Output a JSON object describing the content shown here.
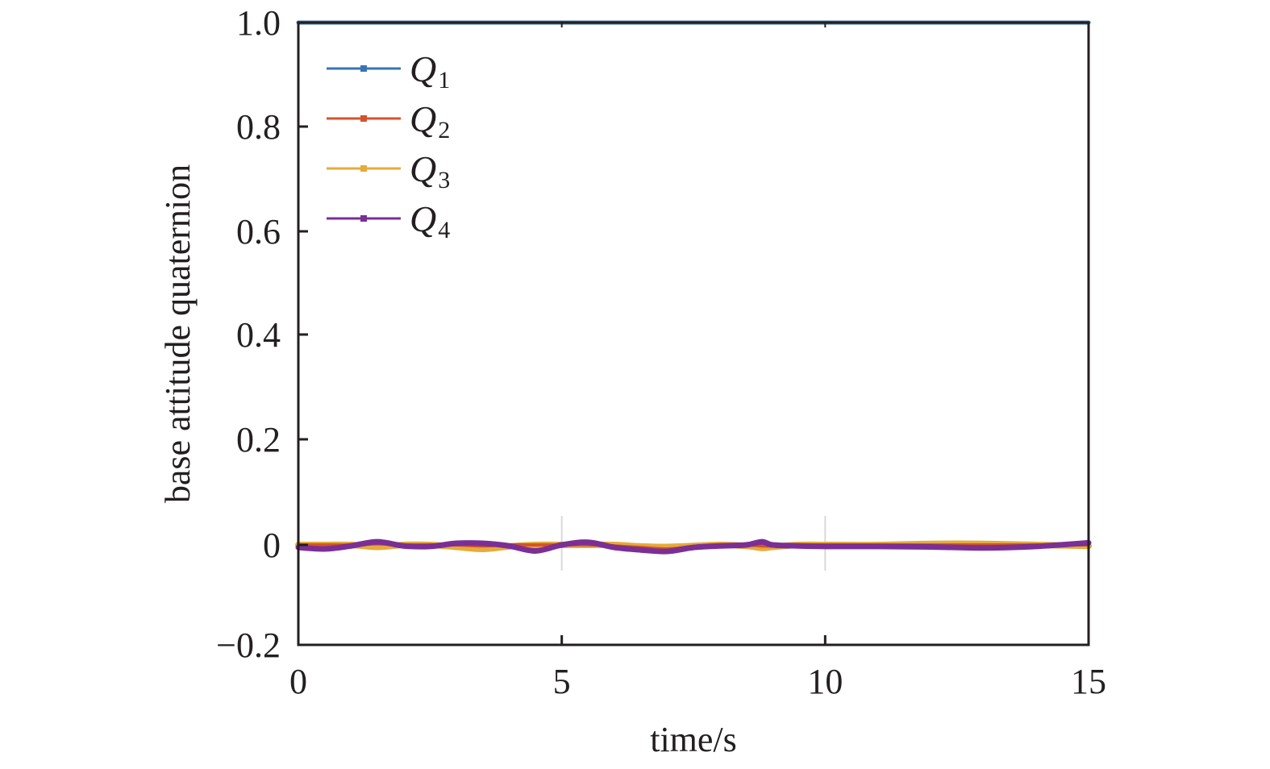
{
  "chart_data": {
    "type": "line",
    "title": "",
    "xlabel": "time/s",
    "ylabel": "base attitude quaternion",
    "xlim": [
      0,
      15
    ],
    "ylim": [
      -0.2,
      1.0
    ],
    "xticks": [
      0,
      5,
      10,
      15
    ],
    "xtick_labels": [
      "0",
      "5",
      "10",
      "15"
    ],
    "yticks": [
      -0.2,
      0,
      0.2,
      0.4,
      0.6,
      0.8,
      1.0
    ],
    "ytick_labels": [
      "−0.2",
      "0",
      "0.2",
      "0.4",
      "0.6",
      "0.8",
      "1.0"
    ],
    "grid": false,
    "legend_position": "upper left",
    "x": [
      0,
      0.5,
      1.0,
      1.5,
      2.0,
      2.5,
      3.0,
      3.5,
      4.0,
      4.5,
      5.0,
      5.5,
      6.0,
      6.5,
      7.0,
      7.5,
      8.0,
      8.5,
      8.8,
      9.0,
      9.5,
      10.0,
      11.0,
      12.0,
      13.0,
      14.0,
      15.0
    ],
    "series": [
      {
        "name": "Q1",
        "label_main": "Q",
        "label_sub": "1",
        "color": "#3a73b5",
        "values": [
          1.0,
          1.0,
          1.0,
          1.0,
          1.0,
          1.0,
          1.0,
          1.0,
          1.0,
          1.0,
          1.0,
          1.0,
          1.0,
          1.0,
          1.0,
          1.0,
          1.0,
          1.0,
          1.0,
          1.0,
          1.0,
          1.0,
          1.0,
          1.0,
          1.0,
          1.0,
          1.0
        ]
      },
      {
        "name": "Q2",
        "label_main": "Q",
        "label_sub": "2",
        "color": "#d2542c",
        "values": [
          0.0,
          0.0,
          0.0,
          0.002,
          0.0,
          0.0,
          0.0,
          -0.002,
          0.0,
          0.0,
          0.0,
          0.0,
          -0.002,
          -0.005,
          -0.008,
          -0.003,
          0.0,
          0.0,
          -0.002,
          -0.002,
          0.0,
          0.0,
          0.0,
          0.0,
          0.0,
          0.0,
          0.0
        ]
      },
      {
        "name": "Q3",
        "label_main": "Q",
        "label_sub": "3",
        "color": "#e6ab3a",
        "values": [
          0.0,
          0.0,
          0.0,
          -0.004,
          0.0,
          0.0,
          -0.004,
          -0.008,
          -0.003,
          0.0,
          0.0,
          0.0,
          0.0,
          -0.003,
          -0.004,
          -0.002,
          0.0,
          -0.002,
          -0.006,
          -0.004,
          0.0,
          0.0,
          0.0,
          0.002,
          0.002,
          0.0,
          -0.002
        ]
      },
      {
        "name": "Q4",
        "label_main": "Q",
        "label_sub": "4",
        "color": "#7b2f95",
        "values": [
          -0.005,
          -0.008,
          -0.002,
          0.006,
          -0.002,
          -0.003,
          0.003,
          0.003,
          -0.002,
          -0.012,
          0.0,
          0.005,
          -0.005,
          -0.01,
          -0.013,
          -0.005,
          -0.002,
          0.0,
          0.006,
          0.0,
          -0.002,
          -0.003,
          -0.003,
          -0.004,
          -0.006,
          -0.003,
          0.004
        ]
      }
    ]
  }
}
